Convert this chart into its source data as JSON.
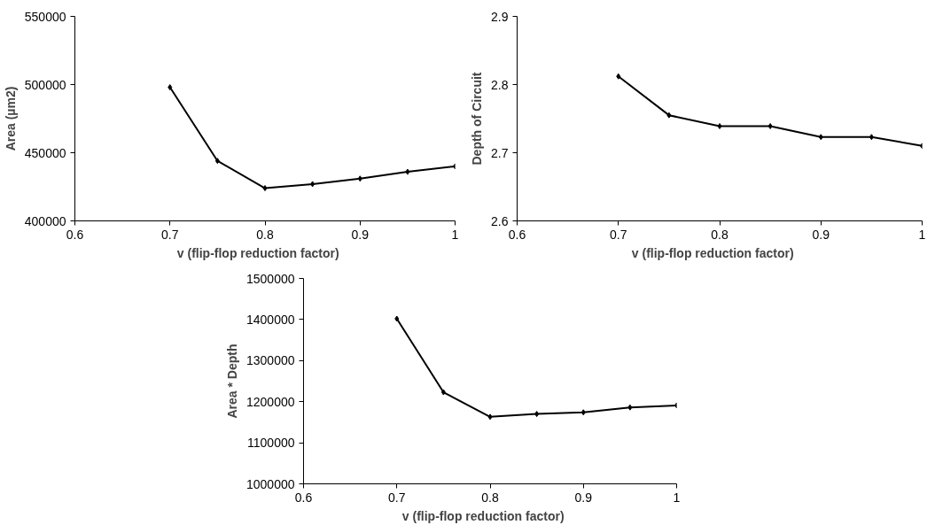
{
  "chart_data": [
    {
      "type": "line",
      "xlabel": "v     (flip-flop reduction factor)",
      "ylabel": "Area (µm2)",
      "x": [
        0.7,
        0.75,
        0.8,
        0.85,
        0.9,
        0.95,
        1
      ],
      "series": [
        {
          "color": "#000000",
          "values": [
            498000,
            444000,
            424000,
            427000,
            431000,
            436000,
            440000
          ]
        }
      ],
      "xlim": [
        0.6,
        1
      ],
      "xticks": [
        0.6,
        0.7,
        0.8,
        0.9,
        1
      ],
      "ylim": [
        400000,
        550000
      ],
      "yticks": [
        400000,
        450000,
        500000,
        550000
      ],
      "grid": false,
      "marker": "diamond",
      "line_style": "solid"
    },
    {
      "type": "line",
      "xlabel": "v     (flip-flop reduction factor)",
      "ylabel": "Depth of Circuit",
      "x": [
        0.7,
        0.75,
        0.8,
        0.85,
        0.9,
        0.95,
        1
      ],
      "series": [
        {
          "color": "#000000",
          "values": [
            2.812,
            2.755,
            2.739,
            2.739,
            2.723,
            2.723,
            2.71
          ]
        }
      ],
      "xlim": [
        0.6,
        1
      ],
      "xticks": [
        0.6,
        0.7,
        0.8,
        0.9,
        1
      ],
      "ylim": [
        2.6,
        2.9
      ],
      "yticks": [
        2.6,
        2.7,
        2.8,
        2.9
      ],
      "grid": false,
      "marker": "diamond",
      "line_style": "solid"
    },
    {
      "type": "line",
      "xlabel": "v     (flip-flop reduction factor)",
      "ylabel": "Area * Depth",
      "x": [
        0.7,
        0.75,
        0.8,
        0.85,
        0.9,
        0.95,
        1
      ],
      "series": [
        {
          "color": "#000000",
          "values": [
            1402000,
            1223000,
            1163000,
            1170000,
            1174000,
            1186000,
            1191000
          ]
        }
      ],
      "xlim": [
        0.6,
        1
      ],
      "xticks": [
        0.6,
        0.7,
        0.8,
        0.9,
        1
      ],
      "ylim": [
        1000000,
        1500000
      ],
      "yticks": [
        1000000,
        1100000,
        1200000,
        1300000,
        1400000,
        1500000
      ],
      "grid": false,
      "marker": "diamond",
      "line_style": "solid"
    }
  ]
}
